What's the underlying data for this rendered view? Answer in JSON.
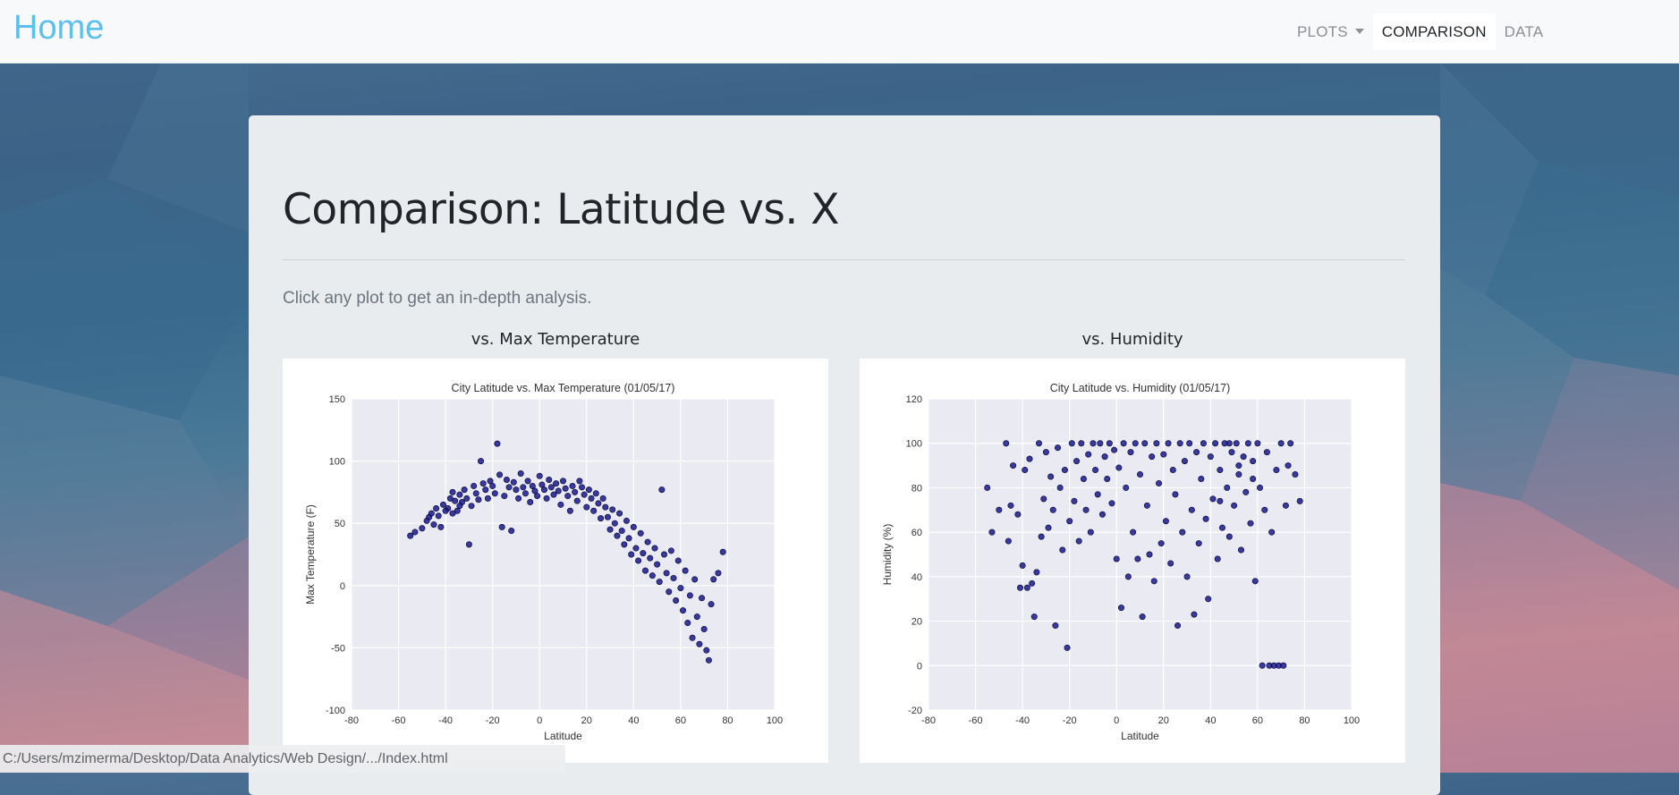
{
  "navbar": {
    "brand": "Home",
    "items": [
      {
        "label": "PLOTS",
        "dropdown": true,
        "active": false
      },
      {
        "label": "COMPARISON",
        "active": true
      },
      {
        "label": "DATA",
        "active": false
      }
    ]
  },
  "main": {
    "title": "Comparison: Latitude vs. X",
    "lead": "Click any plot to get an in-depth analysis.",
    "plots": [
      {
        "heading": "vs. Max Temperature"
      },
      {
        "heading": "vs. Humidity"
      }
    ]
  },
  "status_bar": {
    "url": "C:/Users/mzimerma/Desktop/Data Analytics/Web Design/.../Index.html"
  },
  "colors": {
    "brand": "#5bc0eb",
    "point": "#1a1a8c",
    "plot_bg": "#eaeaf2"
  },
  "chart_data": [
    {
      "type": "scatter",
      "title": "City Latitude vs. Max Temperature (01/05/17)",
      "xlabel": "Latitude",
      "ylabel": "Max Temperature (F)",
      "xlim": [
        -80,
        100
      ],
      "ylim": [
        -100,
        150
      ],
      "xticks": [
        -80,
        -60,
        -40,
        -20,
        0,
        20,
        40,
        60,
        80,
        100
      ],
      "yticks": [
        -100,
        -50,
        0,
        50,
        100,
        150
      ],
      "grid": true,
      "points": [
        [
          -55,
          40
        ],
        [
          -53,
          43
        ],
        [
          -50,
          46
        ],
        [
          -47,
          55
        ],
        [
          -46,
          58
        ],
        [
          -45,
          49
        ],
        [
          -44,
          62
        ],
        [
          -42,
          47
        ],
        [
          -41,
          65
        ],
        [
          -39,
          62
        ],
        [
          -38,
          70
        ],
        [
          -37,
          75
        ],
        [
          -36,
          68
        ],
        [
          -35,
          60
        ],
        [
          -34,
          73
        ],
        [
          -33,
          67
        ],
        [
          -32,
          77
        ],
        [
          -31,
          70
        ],
        [
          -30,
          33
        ],
        [
          -29,
          64
        ],
        [
          -28,
          80
        ],
        [
          -27,
          74
        ],
        [
          -26,
          69
        ],
        [
          -25,
          100
        ],
        [
          -24,
          82
        ],
        [
          -23,
          77
        ],
        [
          -22,
          70
        ],
        [
          -21,
          84
        ],
        [
          -20,
          80
        ],
        [
          -19,
          74
        ],
        [
          -18,
          114
        ],
        [
          -17,
          89
        ],
        [
          -16,
          47
        ],
        [
          -15,
          72
        ],
        [
          -14,
          85
        ],
        [
          -13,
          79
        ],
        [
          -12,
          44
        ],
        [
          -11,
          83
        ],
        [
          -10,
          77
        ],
        [
          -9,
          70
        ],
        [
          -8,
          90
        ],
        [
          -7,
          79
        ],
        [
          -6,
          74
        ],
        [
          -5,
          84
        ],
        [
          -4,
          67
        ],
        [
          -3,
          80
        ],
        [
          -2,
          76
        ],
        [
          -1,
          72
        ],
        [
          0,
          88
        ],
        [
          1,
          81
        ],
        [
          2,
          77
        ],
        [
          3,
          70
        ],
        [
          4,
          85
        ],
        [
          5,
          79
        ],
        [
          6,
          73
        ],
        [
          7,
          82
        ],
        [
          8,
          76
        ],
        [
          9,
          65
        ],
        [
          10,
          84
        ],
        [
          11,
          78
        ],
        [
          12,
          72
        ],
        [
          13,
          60
        ],
        [
          14,
          80
        ],
        [
          15,
          75
        ],
        [
          16,
          68
        ],
        [
          17,
          84
        ],
        [
          18,
          79
        ],
        [
          19,
          73
        ],
        [
          20,
          63
        ],
        [
          21,
          77
        ],
        [
          22,
          70
        ],
        [
          23,
          60
        ],
        [
          24,
          74
        ],
        [
          25,
          66
        ],
        [
          26,
          54
        ],
        [
          27,
          70
        ],
        [
          28,
          63
        ],
        [
          29,
          55
        ],
        [
          30,
          45
        ],
        [
          31,
          61
        ],
        [
          32,
          50
        ],
        [
          33,
          40
        ],
        [
          34,
          58
        ],
        [
          35,
          44
        ],
        [
          36,
          33
        ],
        [
          37,
          52
        ],
        [
          38,
          38
        ],
        [
          39,
          25
        ],
        [
          40,
          47
        ],
        [
          41,
          30
        ],
        [
          42,
          20
        ],
        [
          43,
          42
        ],
        [
          44,
          26
        ],
        [
          45,
          12
        ],
        [
          46,
          35
        ],
        [
          47,
          22
        ],
        [
          48,
          8
        ],
        [
          49,
          30
        ],
        [
          50,
          17
        ],
        [
          51,
          3
        ],
        [
          52,
          77
        ],
        [
          53,
          25
        ],
        [
          54,
          10
        ],
        [
          55,
          -5
        ],
        [
          56,
          28
        ],
        [
          57,
          6
        ],
        [
          58,
          -12
        ],
        [
          59,
          20
        ],
        [
          60,
          -2
        ],
        [
          61,
          -20
        ],
        [
          62,
          12
        ],
        [
          63,
          -30
        ],
        [
          64,
          -8
        ],
        [
          65,
          -42
        ],
        [
          66,
          5
        ],
        [
          67,
          -25
        ],
        [
          68,
          -47
        ],
        [
          69,
          -10
        ],
        [
          70,
          -35
        ],
        [
          71,
          -52
        ],
        [
          72,
          -60
        ],
        [
          73,
          -15
        ],
        [
          74,
          5
        ],
        [
          76,
          10
        ],
        [
          78,
          27
        ],
        [
          -48,
          52
        ],
        [
          -43,
          56
        ],
        [
          -40,
          60
        ],
        [
          -37,
          58
        ],
        [
          -34,
          64
        ]
      ]
    },
    {
      "type": "scatter",
      "title": "City Latitude vs. Humidity (01/05/17)",
      "xlabel": "Latitude",
      "ylabel": "Humidity (%)",
      "xlim": [
        -80,
        100
      ],
      "ylim": [
        -20,
        120
      ],
      "xticks": [
        -80,
        -60,
        -40,
        -20,
        0,
        20,
        40,
        60,
        80,
        100
      ],
      "yticks": [
        -20,
        0,
        20,
        40,
        60,
        80,
        100,
        120
      ],
      "grid": true,
      "points": [
        [
          -55,
          80
        ],
        [
          -53,
          60
        ],
        [
          -50,
          70
        ],
        [
          -47,
          100
        ],
        [
          -46,
          56
        ],
        [
          -45,
          72
        ],
        [
          -44,
          90
        ],
        [
          -42,
          68
        ],
        [
          -41,
          35
        ],
        [
          -40,
          45
        ],
        [
          -39,
          88
        ],
        [
          -38,
          35
        ],
        [
          -37,
          93
        ],
        [
          -36,
          37
        ],
        [
          -35,
          22
        ],
        [
          -34,
          42
        ],
        [
          -33,
          100
        ],
        [
          -32,
          58
        ],
        [
          -31,
          75
        ],
        [
          -30,
          96
        ],
        [
          -29,
          62
        ],
        [
          -28,
          85
        ],
        [
          -27,
          70
        ],
        [
          -26,
          18
        ],
        [
          -25,
          98
        ],
        [
          -24,
          80
        ],
        [
          -23,
          52
        ],
        [
          -22,
          88
        ],
        [
          -21,
          8
        ],
        [
          -20,
          65
        ],
        [
          -19,
          100
        ],
        [
          -18,
          74
        ],
        [
          -17,
          92
        ],
        [
          -16,
          56
        ],
        [
          -15,
          100
        ],
        [
          -14,
          84
        ],
        [
          -13,
          70
        ],
        [
          -12,
          95
        ],
        [
          -11,
          60
        ],
        [
          -10,
          100
        ],
        [
          -9,
          88
        ],
        [
          -8,
          77
        ],
        [
          -7,
          100
        ],
        [
          -6,
          68
        ],
        [
          -5,
          94
        ],
        [
          -4,
          84
        ],
        [
          -3,
          100
        ],
        [
          -2,
          73
        ],
        [
          -1,
          97
        ],
        [
          0,
          48
        ],
        [
          1,
          89
        ],
        [
          2,
          26
        ],
        [
          3,
          100
        ],
        [
          4,
          80
        ],
        [
          5,
          40
        ],
        [
          6,
          96
        ],
        [
          7,
          60
        ],
        [
          8,
          100
        ],
        [
          9,
          48
        ],
        [
          10,
          86
        ],
        [
          11,
          22
        ],
        [
          12,
          100
        ],
        [
          13,
          72
        ],
        [
          14,
          50
        ],
        [
          15,
          94
        ],
        [
          16,
          38
        ],
        [
          17,
          100
        ],
        [
          18,
          82
        ],
        [
          19,
          55
        ],
        [
          20,
          95
        ],
        [
          21,
          65
        ],
        [
          22,
          100
        ],
        [
          23,
          46
        ],
        [
          24,
          88
        ],
        [
          25,
          77
        ],
        [
          26,
          18
        ],
        [
          27,
          100
        ],
        [
          28,
          60
        ],
        [
          29,
          92
        ],
        [
          30,
          40
        ],
        [
          31,
          100
        ],
        [
          32,
          70
        ],
        [
          33,
          23
        ],
        [
          34,
          96
        ],
        [
          35,
          55
        ],
        [
          36,
          84
        ],
        [
          37,
          100
        ],
        [
          38,
          66
        ],
        [
          39,
          30
        ],
        [
          40,
          94
        ],
        [
          41,
          75
        ],
        [
          42,
          100
        ],
        [
          43,
          48
        ],
        [
          44,
          88
        ],
        [
          45,
          62
        ],
        [
          46,
          100
        ],
        [
          47,
          80
        ],
        [
          48,
          58
        ],
        [
          49,
          96
        ],
        [
          50,
          72
        ],
        [
          51,
          100
        ],
        [
          52,
          86
        ],
        [
          53,
          52
        ],
        [
          54,
          94
        ],
        [
          55,
          78
        ],
        [
          56,
          100
        ],
        [
          57,
          64
        ],
        [
          58,
          92
        ],
        [
          59,
          38
        ],
        [
          60,
          100
        ],
        [
          61,
          80
        ],
        [
          62,
          0
        ],
        [
          63,
          70
        ],
        [
          64,
          96
        ],
        [
          65,
          0
        ],
        [
          66,
          60
        ],
        [
          67,
          0
        ],
        [
          68,
          88
        ],
        [
          69,
          0
        ],
        [
          70,
          100
        ],
        [
          71,
          0
        ],
        [
          72,
          72
        ],
        [
          73,
          90
        ],
        [
          74,
          100
        ],
        [
          76,
          86
        ],
        [
          78,
          74
        ],
        [
          58,
          84
        ],
        [
          52,
          90
        ],
        [
          48,
          100
        ],
        [
          44,
          74
        ]
      ]
    }
  ]
}
